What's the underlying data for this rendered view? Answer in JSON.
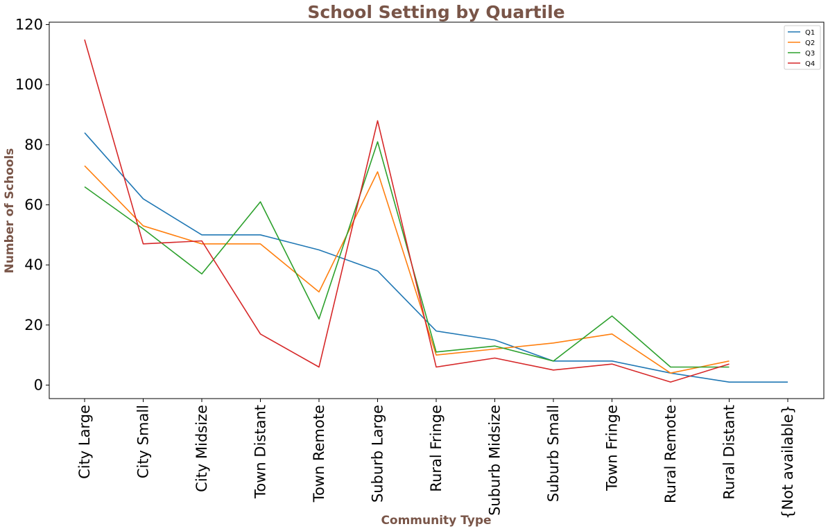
{
  "chart_data": {
    "type": "line",
    "title": "School Setting by Quartile",
    "xlabel": "Community Type",
    "ylabel": "Number of Schools",
    "categories": [
      "City Large",
      "City Small",
      "City Midsize",
      "Town Distant",
      "Town Remote",
      "Suburb Large",
      "Rural Fringe",
      "Suburb Midsize",
      "Suburb Small",
      "Town Fringe",
      "Rural Remote",
      "Rural Distant",
      "{Not available}"
    ],
    "ylim": [
      -4.5,
      120.8
    ],
    "yticks": [
      0,
      20,
      40,
      60,
      80,
      100,
      120
    ],
    "grid": false,
    "legend_position": "top-right",
    "label_color": "#795548",
    "series": [
      {
        "name": "Q1",
        "color": "#1f77b4",
        "values": [
          84,
          62,
          50,
          50,
          45,
          38,
          18,
          15,
          8,
          8,
          4,
          1,
          1
        ]
      },
      {
        "name": "Q2",
        "color": "#ff7f0e",
        "values": [
          73,
          53,
          47,
          47,
          31,
          71,
          10,
          12,
          14,
          17,
          4,
          8,
          null
        ]
      },
      {
        "name": "Q3",
        "color": "#2ca02c",
        "values": [
          66,
          52,
          37,
          61,
          22,
          81,
          11,
          13,
          8,
          23,
          6,
          6,
          null
        ]
      },
      {
        "name": "Q4",
        "color": "#d62728",
        "values": [
          115,
          47,
          48,
          17,
          6,
          88,
          6,
          9,
          5,
          7,
          1,
          7,
          null
        ]
      }
    ]
  }
}
